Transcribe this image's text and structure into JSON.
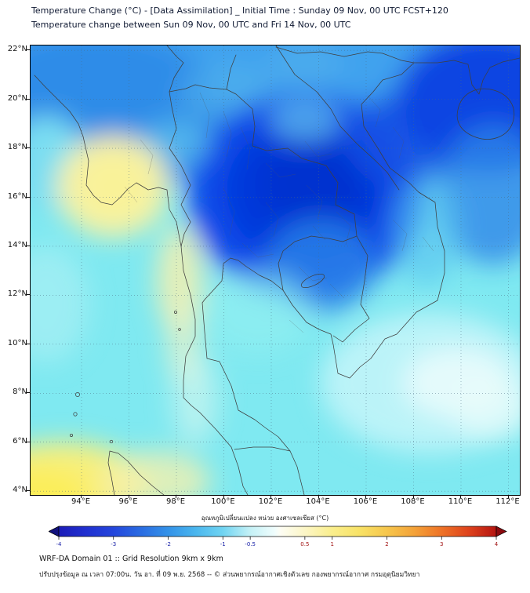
{
  "header": {
    "title_line1": "Temperature Change (°C) - [Data Assimilation] _ Initial Time : Sunday 09 Nov, 00 UTC FCST+120",
    "title_line2": "Temperature change between Sun 09 Nov, 00 UTC and Fri 14 Nov, 00 UTC"
  },
  "map": {
    "lat_ticks": [
      "22°N",
      "20°N",
      "18°N",
      "16°N",
      "14°N",
      "12°N",
      "10°N",
      "8°N",
      "6°N",
      "4°N"
    ],
    "lon_ticks": [
      "94°E",
      "96°E",
      "98°E",
      "100°E",
      "102°E",
      "104°E",
      "106°E",
      "108°E",
      "110°E",
      "112°E"
    ],
    "reading": {
      "base_change_c": "-1 to -2 (light cyan over most of domain)",
      "regions": [
        {
          "area": "Laos / northern Vietnam / upper NE Thailand (102-108E, 15-20N)",
          "change_c": "-3 to -4 (dark blue)"
        },
        {
          "area": "Northern band 20-22N and top-right corner",
          "change_c": "-2 to -3 (blue)"
        },
        {
          "area": "Central Thailand and Gulf",
          "change_c": "-1 to -2 (cyan)"
        },
        {
          "area": "Western Myanmar area (95-97.5E, 14.5-17.5N)",
          "change_c": "+0.5 to +1 (pale yellow)"
        },
        {
          "area": "Strip along western Thai peninsula (98-99.5E, 10-14N)",
          "change_c": "0 to +0.5 (pale yellow)"
        },
        {
          "area": "Bottom-left corner / northern Sumatra (4-5.5N)",
          "change_c": "+1 (yellow)"
        },
        {
          "area": "Lower-right sea area (105-111E, 6-11N)",
          "change_c": "-0.5 to -1 (very pale cyan / near white)"
        }
      ]
    }
  },
  "colorbar": {
    "title": "อุณหภูมิเปลี่ยนแปลง หน่วย องศาเซลเซียส (°C)",
    "tick_labels": [
      "-4",
      "-3",
      "-2",
      "-1",
      "-0.5",
      "0.5",
      "1",
      "2",
      "3",
      "4"
    ],
    "range": [
      -4,
      4
    ],
    "arrow_left_color": "#12127e",
    "arrow_right_color": "#8c0a0e",
    "gradient": [
      {
        "v": -4,
        "c": "#1c1cb8"
      },
      {
        "v": -3.5,
        "c": "#2030d0"
      },
      {
        "v": -3,
        "c": "#2446dc"
      },
      {
        "v": -2.5,
        "c": "#2a6ce2"
      },
      {
        "v": -2,
        "c": "#3392e8"
      },
      {
        "v": -1.5,
        "c": "#4ab6ee"
      },
      {
        "v": -1,
        "c": "#70d4f2"
      },
      {
        "v": -0.5,
        "c": "#c4f1f6"
      },
      {
        "v": -0.05,
        "c": "#f0fdfd"
      },
      {
        "v": 0.05,
        "c": "#fdfdf4"
      },
      {
        "v": 0.5,
        "c": "#fcf6c6"
      },
      {
        "v": 1,
        "c": "#faee8c"
      },
      {
        "v": 1.5,
        "c": "#f8e266"
      },
      {
        "v": 2,
        "c": "#f6c64c"
      },
      {
        "v": 2.5,
        "c": "#f4a238"
      },
      {
        "v": 3,
        "c": "#ee7226"
      },
      {
        "v": 3.5,
        "c": "#de421c"
      },
      {
        "v": 4,
        "c": "#b41410"
      }
    ]
  },
  "footer": {
    "line1": "WRF-DA Domain 01 :: Grid Resolution 9km x 9km",
    "line2": "ปรับปรุงข้อมูล ณ เวลา 07:00น. วัน อา. ที่ 09 พ.ย. 2568 -- © ส่วนพยากรณ์อากาศเชิงตัวเลข กองพยากรณ์อากาศ กรมอุตุนิยมวิทยา"
  }
}
